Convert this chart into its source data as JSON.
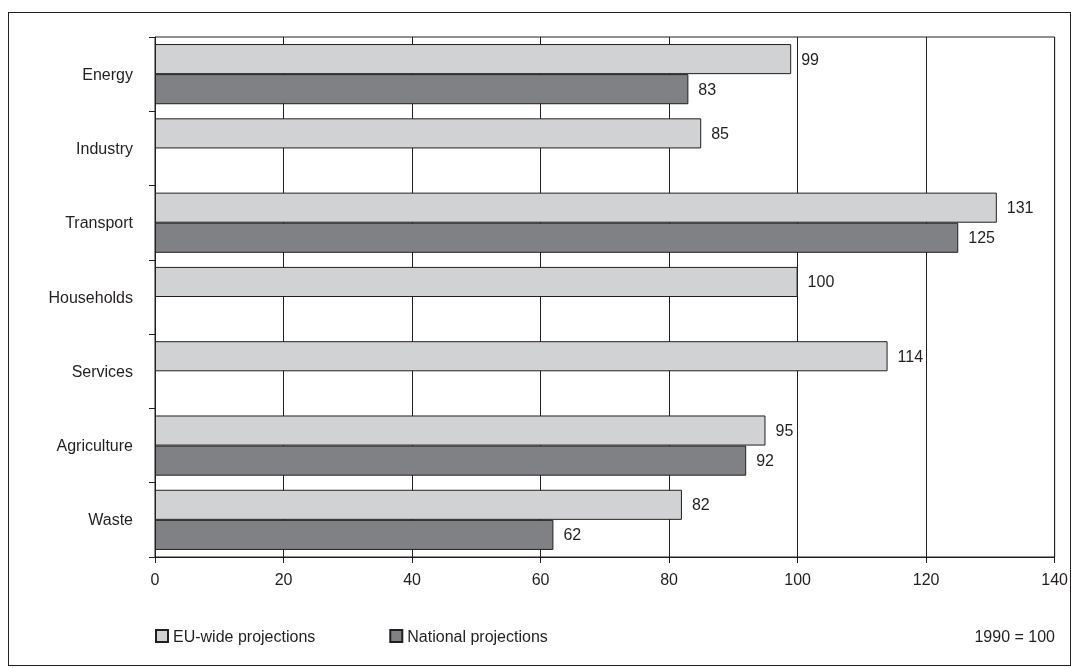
{
  "chart_data": {
    "type": "bar",
    "orientation": "horizontal",
    "categories": [
      "Energy",
      "Industry",
      "Transport",
      "Households",
      "Services",
      "Agriculture",
      "Waste"
    ],
    "series": [
      {
        "name": "EU-wide projections",
        "color": "#d1d2d4",
        "values": [
          99,
          85,
          131,
          100,
          114,
          95,
          82
        ]
      },
      {
        "name": "National projections",
        "color": "#808184",
        "values": [
          83,
          null,
          125,
          null,
          null,
          92,
          62
        ]
      }
    ],
    "xlim": [
      0,
      140
    ],
    "xticks": [
      0,
      20,
      40,
      60,
      80,
      100,
      120,
      140
    ],
    "grid": "x",
    "legend": "bottom left",
    "data_labels": true,
    "annotations": [
      "1990 = 100"
    ]
  }
}
